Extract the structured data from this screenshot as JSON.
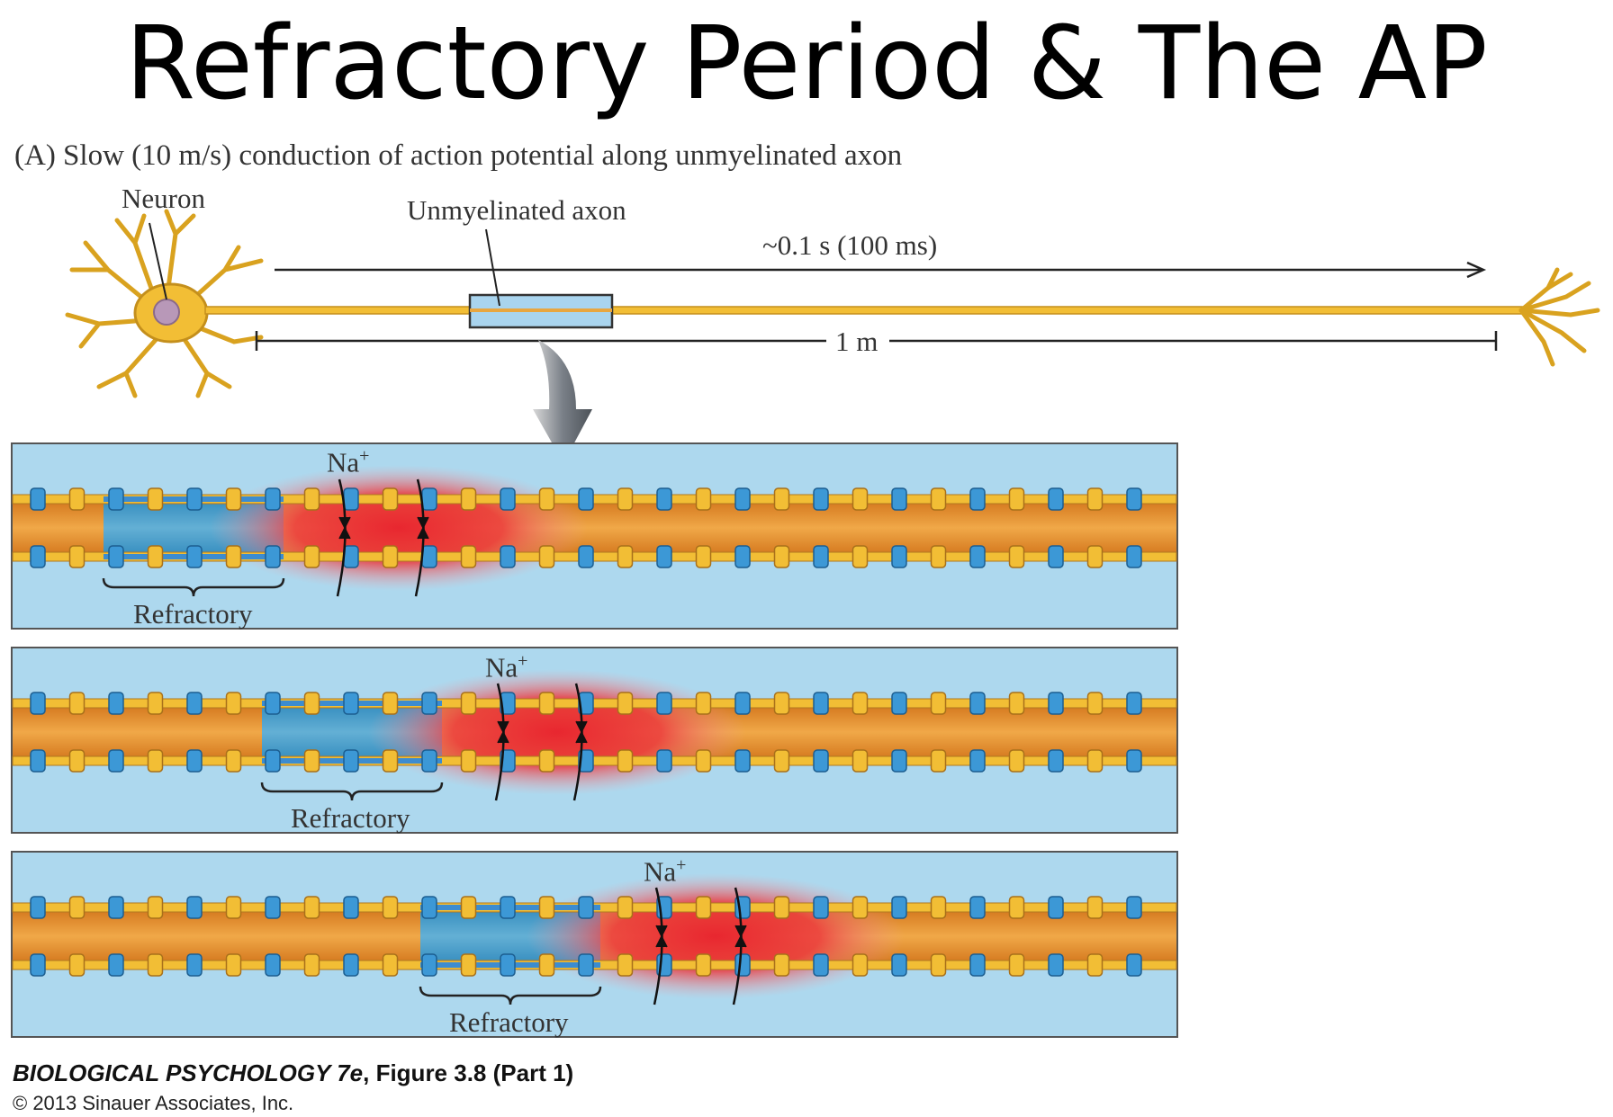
{
  "title": "Refractory Period & The AP",
  "figure": {
    "heading": "(A)  Slow (10 m/s) conduction of action potential along unmyelinated axon",
    "neuron_label": "Neuron",
    "axon_label": "Unmyelinated axon",
    "time_label": "~0.1 s (100 ms)",
    "distance_label": "1 m",
    "panels": [
      {
        "ion": "Na",
        "ion_sup": "+",
        "refractory_label": "Refractory"
      },
      {
        "ion": "Na",
        "ion_sup": "+",
        "refractory_label": "Refractory"
      },
      {
        "ion": "Na",
        "ion_sup": "+",
        "refractory_label": "Refractory"
      }
    ]
  },
  "caption": {
    "book": "BIOLOGICAL PSYCHOLOGY 7e",
    "figure_ref": ", Figure 3.8 (Part 1)",
    "copyright": "© 2013 Sinauer Associates, Inc."
  },
  "colors": {
    "panel_bg": "#ADD8EE",
    "axon_orange": "#E8942E",
    "refractory_blue": "#3E9AD0",
    "depolarized_red": "#E8353F",
    "neuron_yellow": "#F2BE35"
  }
}
